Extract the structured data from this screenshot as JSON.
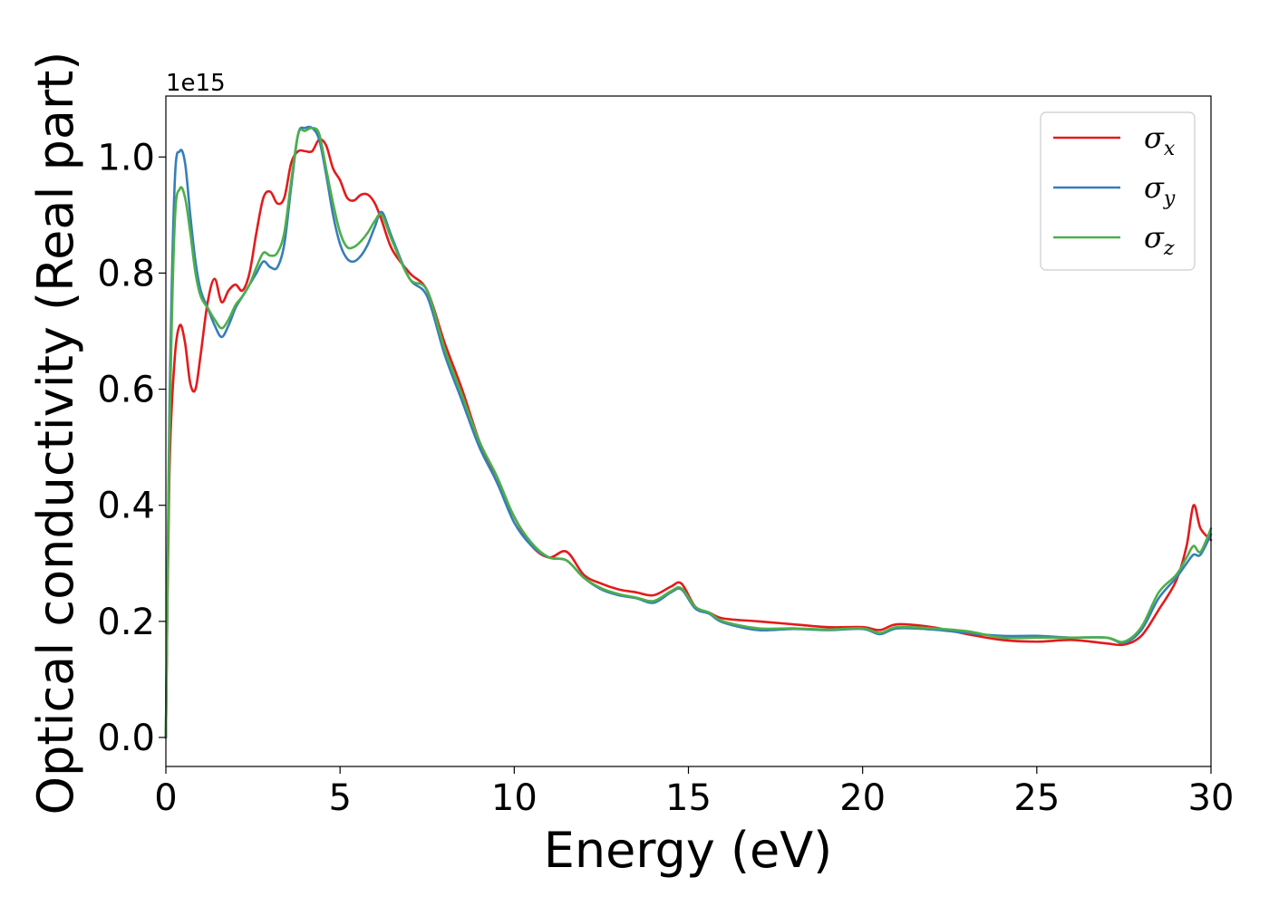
{
  "chart_data": {
    "type": "line",
    "xlabel": "Energy (eV)",
    "ylabel": "Optical conductivity (Real part)",
    "y_offset_label": "1e15",
    "xlim": [
      0,
      30
    ],
    "ylim": [
      -0.05,
      1.105
    ],
    "xticks": [
      0,
      5,
      10,
      15,
      20,
      25,
      30
    ],
    "xtick_labels": [
      "0",
      "5",
      "10",
      "15",
      "20",
      "25",
      "30"
    ],
    "yticks": [
      0.0,
      0.2,
      0.4,
      0.6,
      0.8,
      1.0
    ],
    "ytick_labels": [
      "0.0",
      "0.2",
      "0.4",
      "0.6",
      "0.8",
      "1.0"
    ],
    "grid": false,
    "legend_position": "top-right",
    "series": [
      {
        "name": "σx",
        "legend_symbol": "σ",
        "legend_subscript": "x",
        "color": "#e41a1c",
        "x": [
          0,
          0.1,
          0.25,
          0.4,
          0.55,
          0.7,
          0.85,
          1.0,
          1.2,
          1.4,
          1.6,
          1.8,
          2.0,
          2.2,
          2.4,
          2.6,
          2.8,
          3.0,
          3.2,
          3.4,
          3.6,
          3.8,
          4.0,
          4.2,
          4.4,
          4.6,
          4.8,
          5.0,
          5.2,
          5.4,
          5.6,
          5.8,
          6.0,
          6.2,
          6.5,
          7.0,
          7.5,
          8.0,
          8.5,
          9.0,
          9.5,
          10.0,
          10.5,
          11.0,
          11.5,
          12.0,
          12.5,
          13.0,
          13.5,
          14.0,
          14.5,
          14.8,
          15.2,
          15.6,
          16.0,
          17.0,
          18.0,
          19.0,
          20.0,
          20.5,
          21.0,
          22.0,
          23.0,
          24.0,
          25.0,
          26.0,
          27.0,
          27.5,
          28.0,
          28.5,
          29.0,
          29.3,
          29.5,
          29.7,
          30.0
        ],
        "y": [
          0.0,
          0.45,
          0.65,
          0.71,
          0.68,
          0.61,
          0.6,
          0.66,
          0.75,
          0.79,
          0.75,
          0.77,
          0.78,
          0.77,
          0.8,
          0.87,
          0.93,
          0.94,
          0.92,
          0.93,
          0.99,
          1.01,
          1.01,
          1.01,
          1.03,
          1.02,
          0.98,
          0.96,
          0.93,
          0.925,
          0.935,
          0.935,
          0.92,
          0.89,
          0.84,
          0.8,
          0.77,
          0.68,
          0.6,
          0.51,
          0.44,
          0.38,
          0.33,
          0.31,
          0.32,
          0.28,
          0.265,
          0.255,
          0.25,
          0.245,
          0.26,
          0.265,
          0.225,
          0.215,
          0.205,
          0.2,
          0.195,
          0.19,
          0.19,
          0.185,
          0.195,
          0.19,
          0.178,
          0.168,
          0.165,
          0.168,
          0.162,
          0.16,
          0.175,
          0.22,
          0.27,
          0.33,
          0.4,
          0.36,
          0.34
        ]
      },
      {
        "name": "σy",
        "legend_symbol": "σ",
        "legend_subscript": "y",
        "color": "#377eb8",
        "x": [
          0,
          0.1,
          0.25,
          0.4,
          0.55,
          0.7,
          0.85,
          1.0,
          1.2,
          1.4,
          1.6,
          1.8,
          2.0,
          2.2,
          2.4,
          2.6,
          2.8,
          3.0,
          3.2,
          3.4,
          3.6,
          3.8,
          4.0,
          4.2,
          4.4,
          4.6,
          4.8,
          5.0,
          5.2,
          5.4,
          5.6,
          5.8,
          6.0,
          6.2,
          6.5,
          7.0,
          7.5,
          8.0,
          8.5,
          9.0,
          9.5,
          10.0,
          10.5,
          11.0,
          11.5,
          12.0,
          12.5,
          13.0,
          13.5,
          14.0,
          14.5,
          14.8,
          15.2,
          15.6,
          16.0,
          17.0,
          18.0,
          19.0,
          20.0,
          20.5,
          21.0,
          22.0,
          23.0,
          24.0,
          25.0,
          26.0,
          27.0,
          27.5,
          28.0,
          28.5,
          29.0,
          29.3,
          29.5,
          29.7,
          30.0
        ],
        "y": [
          0.0,
          0.55,
          0.95,
          1.01,
          0.99,
          0.9,
          0.82,
          0.77,
          0.74,
          0.71,
          0.69,
          0.71,
          0.74,
          0.76,
          0.78,
          0.8,
          0.82,
          0.81,
          0.81,
          0.85,
          0.95,
          1.04,
          1.05,
          1.05,
          1.03,
          0.97,
          0.9,
          0.85,
          0.825,
          0.82,
          0.83,
          0.85,
          0.88,
          0.905,
          0.86,
          0.79,
          0.76,
          0.66,
          0.58,
          0.5,
          0.44,
          0.37,
          0.33,
          0.31,
          0.305,
          0.275,
          0.255,
          0.245,
          0.24,
          0.232,
          0.25,
          0.255,
          0.222,
          0.213,
          0.198,
          0.185,
          0.187,
          0.185,
          0.187,
          0.178,
          0.188,
          0.186,
          0.18,
          0.175,
          0.175,
          0.172,
          0.172,
          0.163,
          0.185,
          0.24,
          0.275,
          0.3,
          0.315,
          0.315,
          0.35
        ]
      },
      {
        "name": "σz",
        "legend_symbol": "σ",
        "legend_subscript": "z",
        "color": "#4daf4a",
        "x": [
          0,
          0.1,
          0.25,
          0.4,
          0.55,
          0.7,
          0.85,
          1.0,
          1.2,
          1.4,
          1.6,
          1.8,
          2.0,
          2.2,
          2.4,
          2.6,
          2.8,
          3.0,
          3.2,
          3.4,
          3.6,
          3.8,
          4.0,
          4.2,
          4.4,
          4.6,
          4.8,
          5.0,
          5.2,
          5.4,
          5.6,
          5.8,
          6.0,
          6.2,
          6.5,
          7.0,
          7.5,
          8.0,
          8.5,
          9.0,
          9.5,
          10.0,
          10.5,
          11.0,
          11.5,
          12.0,
          12.5,
          13.0,
          13.5,
          14.0,
          14.5,
          14.8,
          15.2,
          15.6,
          16.0,
          17.0,
          18.0,
          19.0,
          20.0,
          20.5,
          21.0,
          22.0,
          23.0,
          24.0,
          25.0,
          26.0,
          27.0,
          27.5,
          28.0,
          28.5,
          29.0,
          29.3,
          29.5,
          29.7,
          30.0
        ],
        "y": [
          0.0,
          0.5,
          0.88,
          0.945,
          0.93,
          0.87,
          0.8,
          0.76,
          0.74,
          0.72,
          0.705,
          0.72,
          0.745,
          0.76,
          0.78,
          0.81,
          0.835,
          0.83,
          0.835,
          0.87,
          0.96,
          1.04,
          1.045,
          1.05,
          1.04,
          0.98,
          0.92,
          0.87,
          0.845,
          0.845,
          0.855,
          0.87,
          0.89,
          0.9,
          0.855,
          0.79,
          0.77,
          0.67,
          0.59,
          0.51,
          0.45,
          0.38,
          0.335,
          0.31,
          0.305,
          0.275,
          0.257,
          0.247,
          0.241,
          0.235,
          0.252,
          0.257,
          0.225,
          0.215,
          0.2,
          0.188,
          0.188,
          0.186,
          0.188,
          0.18,
          0.19,
          0.188,
          0.183,
          0.172,
          0.172,
          0.172,
          0.172,
          0.165,
          0.19,
          0.25,
          0.28,
          0.31,
          0.33,
          0.32,
          0.36
        ]
      }
    ]
  }
}
